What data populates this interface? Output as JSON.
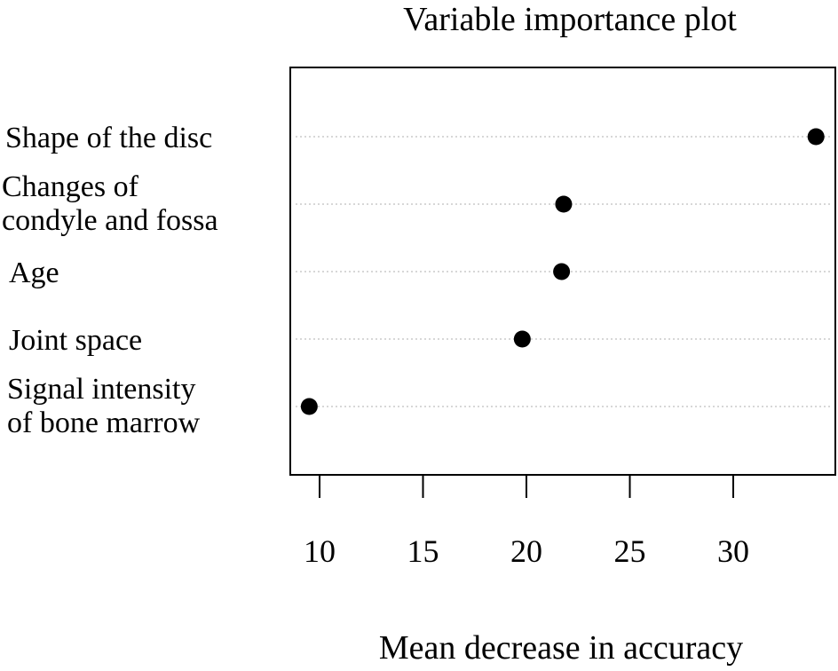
{
  "chart_data": {
    "type": "scatter",
    "title": "Variable importance plot",
    "xlabel": "Mean decrease in accuracy",
    "ylabel": "",
    "xlim": [
      8.6,
      34.5
    ],
    "xticks": [
      "10",
      "15",
      "20",
      "25",
      "30"
    ],
    "xtick_values": [
      10,
      15,
      20,
      25,
      30
    ],
    "grid": "dotted horizontal guide lines",
    "categories": [
      [
        "Shape of the disc"
      ],
      [
        "Changes of",
        "condyle and fossa"
      ],
      [
        "Age"
      ],
      [
        "Joint space"
      ],
      [
        "Signal intensity",
        "of bone marrow"
      ]
    ],
    "values": [
      34.0,
      21.8,
      21.7,
      19.8,
      9.5
    ],
    "colors": {
      "point": "#000000",
      "guide": "#bfbfbf",
      "axis": "#000000"
    }
  }
}
